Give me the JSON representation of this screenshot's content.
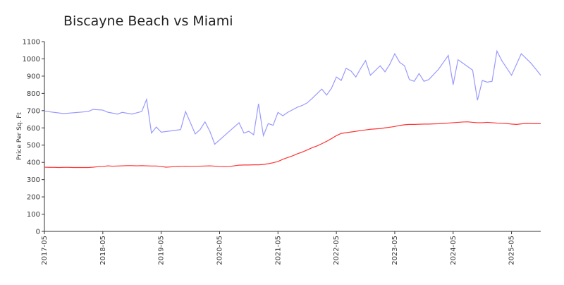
{
  "chart_data": {
    "type": "line",
    "title": "Biscayne Beach vs Miami",
    "y_label": "Price Per Sq. Ft",
    "xlim": [
      "2017-05",
      "2025-11"
    ],
    "xticks": [
      "2017-05",
      "2018-05",
      "2019-05",
      "2020-05",
      "2021-05",
      "2022-05",
      "2023-05",
      "2024-05",
      "2025-05"
    ],
    "ylim": [
      0,
      1100
    ],
    "yticks": [
      0,
      100,
      200,
      300,
      400,
      500,
      600,
      700,
      800,
      900,
      1000,
      1100
    ],
    "series": [
      {
        "color": "#9999ff",
        "x": [
          "2017-05",
          "2017-09",
          "2018-02",
          "2018-03",
          "2018-05",
          "2018-06",
          "2018-08",
          "2018-09",
          "2018-11",
          "2019-01",
          "2019-02",
          "2019-03",
          "2019-04",
          "2019-05",
          "2019-09",
          "2019-10",
          "2019-12",
          "2020-01",
          "2020-02",
          "2020-03",
          "2020-04",
          "2020-09",
          "2020-10",
          "2020-11",
          "2020-12",
          "2021-01",
          "2021-02",
          "2021-03",
          "2021-04",
          "2021-05",
          "2021-06",
          "2021-07",
          "2021-08",
          "2021-09",
          "2021-10",
          "2021-11",
          "2021-12",
          "2022-02",
          "2022-03",
          "2022-04",
          "2022-05",
          "2022-06",
          "2022-07",
          "2022-08",
          "2022-09",
          "2022-10",
          "2022-11",
          "2022-12",
          "2023-02",
          "2023-03",
          "2023-04",
          "2023-05",
          "2023-06",
          "2023-07",
          "2023-08",
          "2023-09",
          "2023-10",
          "2023-11",
          "2023-12",
          "2024-02",
          "2024-04",
          "2024-05",
          "2024-06",
          "2024-09",
          "2024-10",
          "2024-11",
          "2024-12",
          "2025-01",
          "2025-02",
          "2025-03",
          "2025-05",
          "2025-07",
          "2025-09",
          "2025-11"
        ],
        "values": [
          697,
          683,
          695,
          707,
          703,
          691,
          680,
          690,
          680,
          695,
          765,
          570,
          605,
          575,
          590,
          695,
          565,
          590,
          635,
          580,
          505,
          630,
          570,
          580,
          560,
          740,
          555,
          625,
          615,
          690,
          670,
          690,
          705,
          720,
          730,
          745,
          770,
          825,
          790,
          830,
          895,
          875,
          945,
          930,
          895,
          945,
          990,
          905,
          960,
          925,
          970,
          1030,
          980,
          960,
          880,
          870,
          915,
          870,
          880,
          940,
          1020,
          850,
          995,
          935,
          760,
          875,
          865,
          870,
          1045,
          990,
          905,
          1030,
          975,
          905
        ]
      },
      {
        "color": "#ff3333",
        "x": [
          "2017-05",
          "2017-06",
          "2017-07",
          "2017-08",
          "2017-09",
          "2017-10",
          "2017-11",
          "2017-12",
          "2018-01",
          "2018-02",
          "2018-03",
          "2018-04",
          "2018-05",
          "2018-06",
          "2018-07",
          "2018-08",
          "2018-09",
          "2018-10",
          "2018-11",
          "2018-12",
          "2019-01",
          "2019-02",
          "2019-03",
          "2019-04",
          "2019-05",
          "2019-06",
          "2019-07",
          "2019-08",
          "2019-09",
          "2019-10",
          "2019-11",
          "2019-12",
          "2020-01",
          "2020-02",
          "2020-03",
          "2020-04",
          "2020-05",
          "2020-06",
          "2020-07",
          "2020-08",
          "2020-09",
          "2020-10",
          "2020-11",
          "2020-12",
          "2021-01",
          "2021-02",
          "2021-03",
          "2021-04",
          "2021-05",
          "2021-06",
          "2021-07",
          "2021-08",
          "2021-09",
          "2021-10",
          "2021-11",
          "2021-12",
          "2022-01",
          "2022-02",
          "2022-03",
          "2022-04",
          "2022-05",
          "2022-06",
          "2022-07",
          "2022-08",
          "2022-09",
          "2022-10",
          "2022-11",
          "2022-12",
          "2023-01",
          "2023-02",
          "2023-03",
          "2023-04",
          "2023-05",
          "2023-06",
          "2023-07",
          "2023-08",
          "2023-09",
          "2023-10",
          "2023-11",
          "2023-12",
          "2024-01",
          "2024-02",
          "2024-03",
          "2024-04",
          "2024-05",
          "2024-06",
          "2024-07",
          "2024-08",
          "2024-09",
          "2024-10",
          "2024-11",
          "2024-12",
          "2025-01",
          "2025-02",
          "2025-03",
          "2025-04",
          "2025-05",
          "2025-06",
          "2025-07",
          "2025-08",
          "2025-09",
          "2025-10",
          "2025-11"
        ],
        "values": [
          372,
          371,
          371,
          370,
          371,
          371,
          370,
          370,
          370,
          370,
          372,
          375,
          376,
          380,
          378,
          379,
          380,
          381,
          381,
          380,
          381,
          380,
          379,
          379,
          376,
          372,
          374,
          376,
          377,
          378,
          377,
          378,
          378,
          379,
          380,
          378,
          376,
          375,
          376,
          380,
          384,
          385,
          385,
          386,
          386,
          388,
          392,
          398,
          405,
          418,
          428,
          438,
          450,
          460,
          472,
          485,
          495,
          508,
          522,
          538,
          555,
          568,
          572,
          576,
          580,
          585,
          588,
          592,
          594,
          596,
          600,
          604,
          608,
          614,
          618,
          620,
          620,
          621,
          622,
          622,
          623,
          624,
          626,
          628,
          630,
          632,
          634,
          635,
          632,
          630,
          630,
          632,
          630,
          628,
          627,
          625,
          622,
          620,
          623,
          626,
          625,
          624,
          624
        ]
      }
    ]
  }
}
